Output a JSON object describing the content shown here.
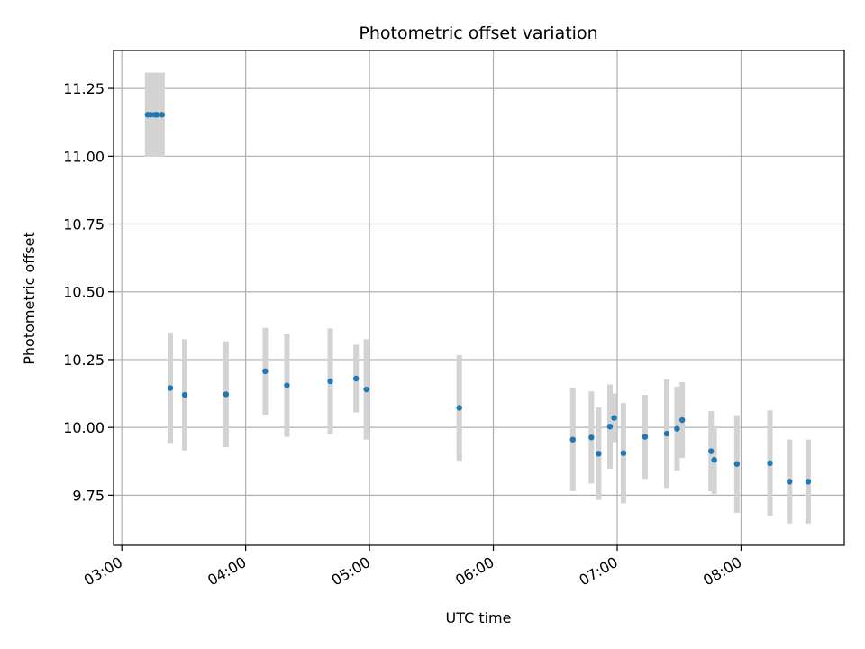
{
  "chart_data": {
    "type": "scatter",
    "title": "Photometric offset variation",
    "xlabel": "UTC time",
    "ylabel": "Photometric offset",
    "x_unit": "UTC time (HH:MM)",
    "xlim": [
      "02:56",
      "08:50"
    ],
    "ylim": [
      9.565,
      11.39
    ],
    "x_ticks": [
      "03:00",
      "04:00",
      "05:00",
      "06:00",
      "07:00",
      "08:00"
    ],
    "y_ticks": [
      "9.75",
      "10.00",
      "10.25",
      "10.50",
      "10.75",
      "11.00",
      "11.25"
    ],
    "grid": true,
    "colors": {
      "point": "#1f77b4",
      "errorbar": "#d3d3d3",
      "grid": "#b0b0b0",
      "axes": "#000000"
    },
    "series": [
      {
        "points": [
          {
            "x": "03:12:30",
            "y": 11.153,
            "yerr": 0.155
          },
          {
            "x": "03:14:00",
            "y": 11.153,
            "yerr": 0.155
          },
          {
            "x": "03:16:00",
            "y": 11.153,
            "yerr": 0.155
          },
          {
            "x": "03:17:00",
            "y": 11.153,
            "yerr": 0.155
          },
          {
            "x": "03:19:30",
            "y": 11.153,
            "yerr": 0.155
          },
          {
            "x": "03:23:30",
            "y": 10.145,
            "yerr": 0.205
          },
          {
            "x": "03:30:30",
            "y": 10.12,
            "yerr": 0.205
          },
          {
            "x": "03:50:30",
            "y": 10.122,
            "yerr": 0.195
          },
          {
            "x": "04:09:30",
            "y": 10.207,
            "yerr": 0.16
          },
          {
            "x": "04:20:00",
            "y": 10.155,
            "yerr": 0.19
          },
          {
            "x": "04:41:00",
            "y": 10.17,
            "yerr": 0.195
          },
          {
            "x": "04:53:30",
            "y": 10.18,
            "yerr": 0.125
          },
          {
            "x": "04:58:30",
            "y": 10.14,
            "yerr": 0.185
          },
          {
            "x": "05:43:30",
            "y": 10.072,
            "yerr": 0.195
          },
          {
            "x": "06:38:30",
            "y": 9.955,
            "yerr": 0.19
          },
          {
            "x": "06:47:30",
            "y": 9.963,
            "yerr": 0.17
          },
          {
            "x": "06:51:00",
            "y": 9.903,
            "yerr": 0.17
          },
          {
            "x": "06:56:30",
            "y": 10.003,
            "yerr": 0.155
          },
          {
            "x": "06:58:30",
            "y": 10.035,
            "yerr": 0.09
          },
          {
            "x": "07:03:00",
            "y": 9.905,
            "yerr": 0.185
          },
          {
            "x": "07:13:30",
            "y": 9.965,
            "yerr": 0.155
          },
          {
            "x": "07:24:00",
            "y": 9.977,
            "yerr": 0.2
          },
          {
            "x": "07:29:00",
            "y": 9.995,
            "yerr": 0.155
          },
          {
            "x": "07:31:30",
            "y": 10.027,
            "yerr": 0.14
          },
          {
            "x": "07:45:30",
            "y": 9.912,
            "yerr": 0.148
          },
          {
            "x": "07:47:00",
            "y": 9.88,
            "yerr": 0.125
          },
          {
            "x": "07:58:00",
            "y": 9.865,
            "yerr": 0.18
          },
          {
            "x": "08:14:00",
            "y": 9.868,
            "yerr": 0.195
          },
          {
            "x": "08:23:30",
            "y": 9.8,
            "yerr": 0.155
          },
          {
            "x": "08:32:30",
            "y": 9.8,
            "yerr": 0.155
          }
        ]
      }
    ]
  }
}
